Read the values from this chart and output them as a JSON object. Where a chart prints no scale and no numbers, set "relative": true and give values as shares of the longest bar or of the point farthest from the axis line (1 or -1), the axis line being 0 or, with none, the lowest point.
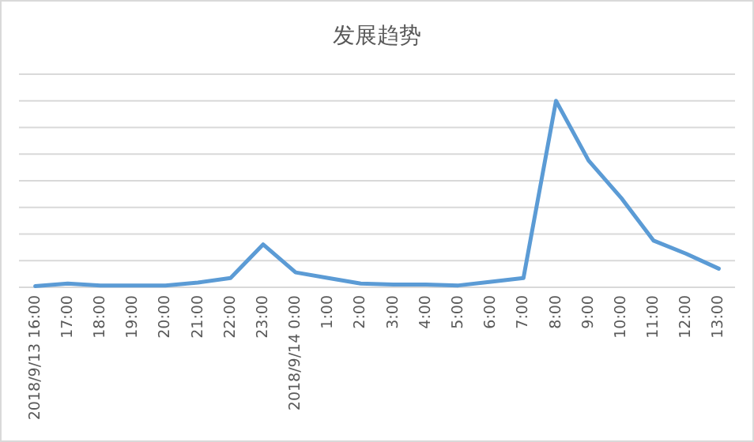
{
  "chart_data": {
    "type": "line",
    "title": "发展趋势",
    "relative": true,
    "grid": "y",
    "marker": "none",
    "line_style": "solid",
    "categories": [
      "2018/9/13 16:00",
      "17:00",
      "18:00",
      "19:00",
      "20:00",
      "21:00",
      "22:00",
      "23:00",
      "2018/9/14 0:00",
      "1:00",
      "2:00",
      "3:00",
      "4:00",
      "5:00",
      "6:00",
      "7:00",
      "8:00",
      "9:00",
      "10:00",
      "11:00",
      "12:00",
      "13:00"
    ],
    "series": [
      {
        "color": "#5b9bd5",
        "values": [
          0.006,
          0.02,
          0.01,
          0.01,
          0.01,
          0.025,
          0.05,
          0.23,
          0.08,
          0.05,
          0.02,
          0.015,
          0.015,
          0.01,
          0.03,
          0.05,
          1,
          0.68,
          0.48,
          0.25,
          0.18,
          0.1
        ]
      }
    ]
  }
}
